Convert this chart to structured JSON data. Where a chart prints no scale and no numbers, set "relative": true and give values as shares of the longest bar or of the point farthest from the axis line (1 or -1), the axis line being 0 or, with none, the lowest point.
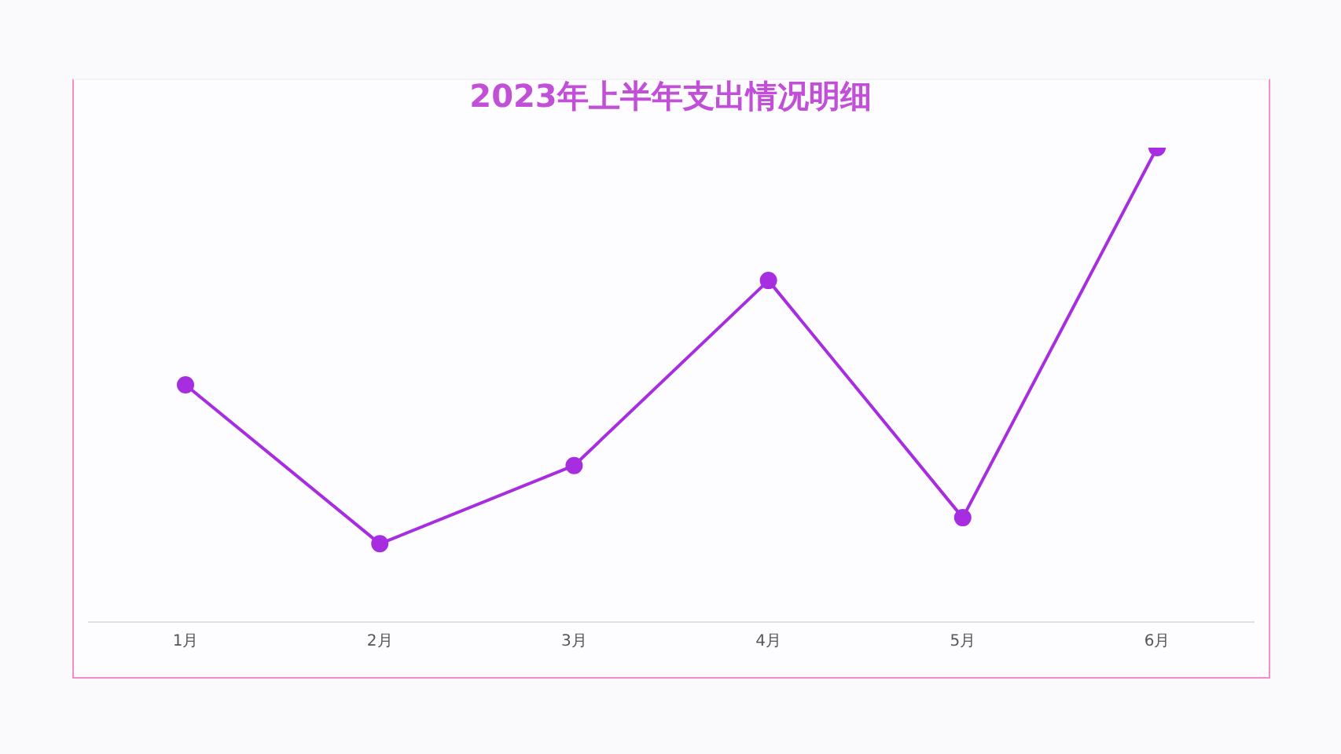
{
  "chart_data": {
    "type": "line",
    "title": "2023年上半年支出情况明细",
    "relative": true,
    "categories": [
      "1月",
      "2月",
      "3月",
      "4月",
      "5月",
      "6月"
    ],
    "series": [
      {
        "color": "#a62ee0",
        "values": [
          0.5,
          0.165,
          0.33,
          0.72,
          0.22,
          1
        ]
      }
    ],
    "marker": "circle",
    "grid": false,
    "legend": false
  }
}
